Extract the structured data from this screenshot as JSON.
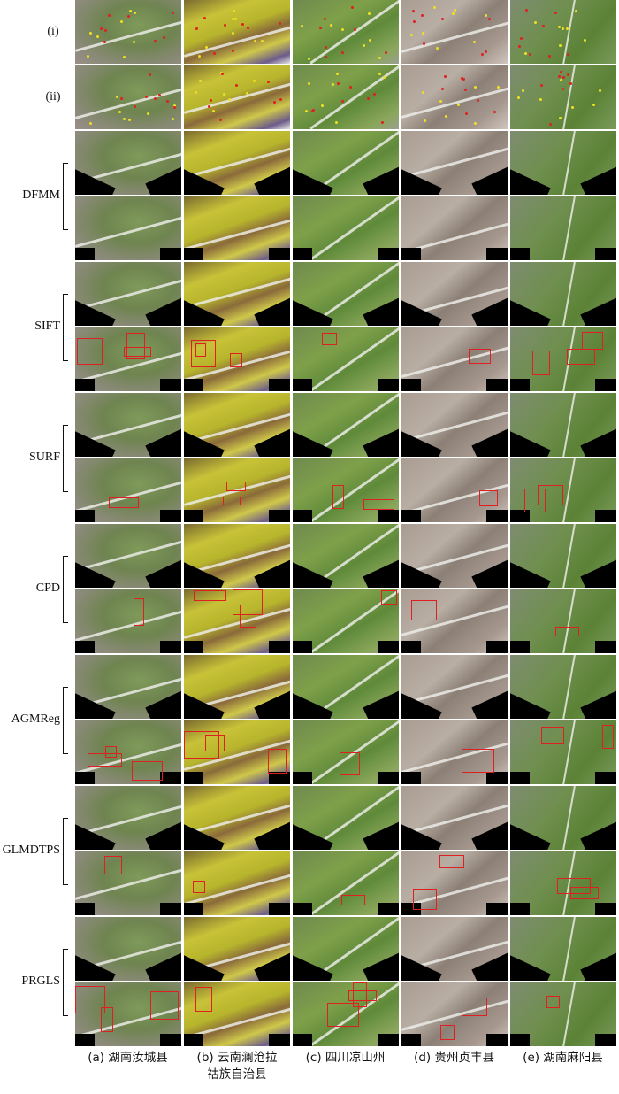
{
  "figure": {
    "row_labels": [
      "(i)",
      "(ii)"
    ],
    "methods": [
      "DFMM",
      "SIFT",
      "SURF",
      "CPD",
      "AGMReg",
      "GLMDTPS",
      "PRGLS"
    ],
    "columns": [
      {
        "caption": "(a) 湖南汝城县"
      },
      {
        "caption": "(b) 云南澜沧拉祜族自治县"
      },
      {
        "caption": "(c) 四川凉山州"
      },
      {
        "caption": "(d) 贵州贞丰县"
      },
      {
        "caption": "(e) 湖南麻阳县"
      }
    ],
    "colors": {
      "outlier_box": "#e02020",
      "match_point_yellow": "#f0e020",
      "match_point_red": "#e02020"
    }
  }
}
